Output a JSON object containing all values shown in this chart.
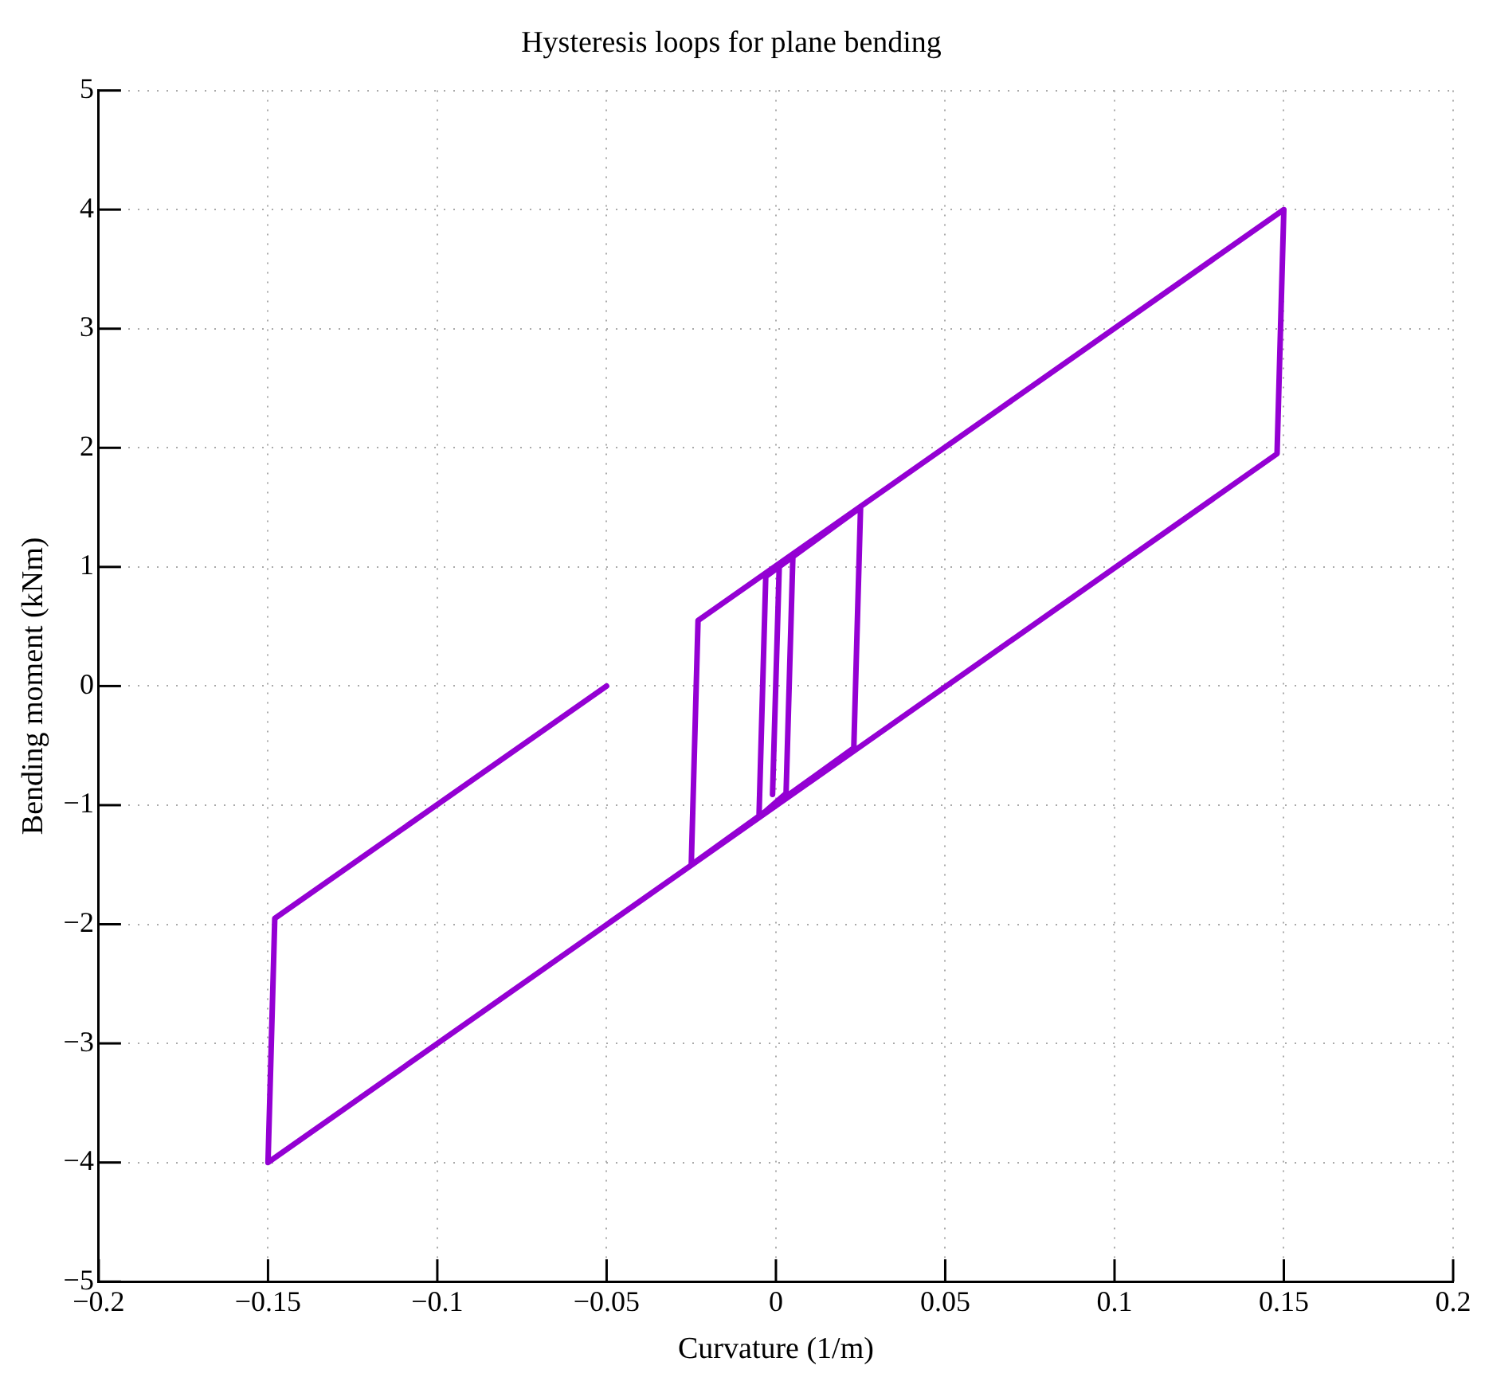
{
  "chart_data": {
    "type": "line",
    "title": "Hysteresis loops for plane bending",
    "xlabel": "Curvature (1/m)",
    "ylabel": "Bending moment (kNm)",
    "x": [
      -0.05,
      -0.148,
      -0.15,
      0.148,
      0.15,
      -0.023,
      -0.025,
      0.023,
      0.025,
      -0.003,
      -0.005,
      0.003,
      0.005,
      0.001,
      -0.001
    ],
    "series": [
      {
        "color": "#9400d3",
        "values": [
          0,
          -1.95,
          -4,
          1.95,
          4,
          0.55,
          -1.5,
          -0.52,
          1.5,
          0.92,
          -1.1,
          -0.9,
          1.08,
          1.02,
          -0.91
        ]
      }
    ],
    "xlim": [
      -0.2,
      0.2
    ],
    "xticks": [
      -0.2,
      -0.15,
      -0.1,
      -0.05,
      0,
      0.05,
      0.1,
      0.15,
      0.2
    ],
    "ylim": [
      -5,
      5
    ],
    "yticks": [
      -5,
      -4,
      -3,
      -2,
      -1,
      0,
      1,
      2,
      3,
      4,
      5
    ],
    "grid": true,
    "legend": false,
    "marker": "none",
    "line_style": "solid"
  }
}
